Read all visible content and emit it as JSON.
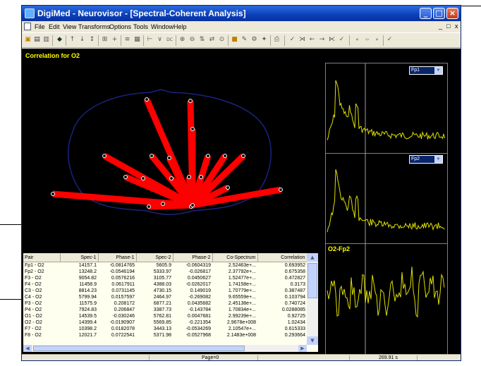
{
  "window": {
    "title": "DigiMed - Neurovisor - [Spectral-Coherent Analysis]"
  },
  "menu": {
    "items": [
      "File",
      "Edit",
      "View",
      "Transforms",
      "Options",
      "Tools",
      "Window",
      "Help"
    ],
    "mdi_controls": [
      "_",
      "□",
      "x"
    ]
  },
  "topomap": {
    "title": "Correlation for O2",
    "line_color": "#ff0000",
    "head_outline_color": "#1a237e",
    "electrode_color": "#ffffff"
  },
  "table": {
    "columns": [
      "Pair",
      "Spec-1",
      "Phase-1",
      "Spec-2",
      "Phase-2",
      "Co-Spectrum",
      "Correlation"
    ],
    "rows": [
      [
        "Fp1 - O2",
        "14157.1",
        "-0.0814765",
        "5605.9",
        "-0.0604319",
        "2.52463e+...",
        "0.693952"
      ],
      [
        "Fp2 - O2",
        "13248.2",
        "-0.0546194",
        "5333.97",
        "-0.026817",
        "2.37792e+...",
        "0.675358"
      ],
      [
        "F3 - O2",
        "9054.82",
        "0.0576216",
        "3105.77",
        "0.0450627",
        "1.52477e+...",
        "0.472827"
      ],
      [
        "F4 - O2",
        "11458.9",
        "0.0617911",
        "4388.03",
        "-0.0262017",
        "1.74158e+...",
        "0.3173"
      ],
      [
        "C3 - O2",
        "8814.23",
        "0.0731145",
        "4730.15",
        "0.149019",
        "1.70779e+...",
        "0.387487"
      ],
      [
        "C4 - O2",
        "5799.94",
        "0.0157597",
        "2464.97",
        "-0.269082",
        "9.65559e+...",
        "0.103794"
      ],
      [
        "P3 - O2",
        "11575.9",
        "0.208172",
        "6877.21",
        "0.0435682",
        "2.45138e+...",
        "0.740724"
      ],
      [
        "P4 - O2",
        "7924.83",
        "0.206847",
        "3387.73",
        "-0.143784",
        "1.70834e+...",
        "0.0288085"
      ],
      [
        "O1 - O2",
        "14539.5",
        "-0.030246",
        "5762.81",
        "0.0047681",
        "2.99239e+...",
        "0.92725"
      ],
      [
        "O2 - O2",
        "14399.4",
        "-0.0190907",
        "5569.85",
        "-0.221354",
        "2.9678e+008",
        "1.02434"
      ],
      [
        "F7 - O2",
        "10398.2",
        "0.0182078",
        "3443.13",
        "-0.0534269",
        "2.10547e+...",
        "0.615333"
      ],
      [
        "F8 - O2",
        "12021.7",
        "0.0722541",
        "5371.98",
        "-0.0527968",
        "2.1483e+008",
        "0.293664"
      ]
    ]
  },
  "graphs": [
    {
      "id": "spectrum-1",
      "selector_value": "Fp1",
      "label": "",
      "trace_color": "#e0e000"
    },
    {
      "id": "spectrum-2",
      "selector_value": "Fp2",
      "label": "",
      "trace_color": "#e0e000"
    },
    {
      "id": "coherence",
      "selector_value": "",
      "label": "O2-Fp2",
      "trace_color": "#e0e000"
    }
  ],
  "status": {
    "page": "Page=0",
    "time": "269.91 s"
  }
}
